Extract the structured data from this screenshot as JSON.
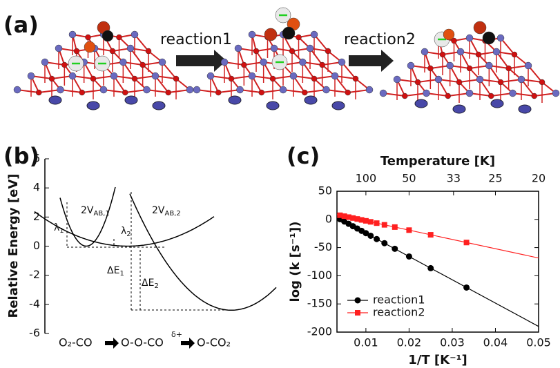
{
  "panel_labels": [
    "(a)",
    "(b)",
    "(c)"
  ],
  "reactions": [
    "reaction1",
    "reaction2"
  ],
  "chart_data": [
    {
      "type": "energy",
      "ylabel": "Relative Energy [eV]",
      "ylim": [
        -6,
        6
      ],
      "yticks": [
        -6,
        -4,
        -2,
        0,
        2,
        4,
        6
      ],
      "minima": [
        0,
        0,
        -4.4
      ],
      "annotations": [
        {
          "text": "λ",
          "sub": "1"
        },
        {
          "text": "2V",
          "sub": "AB,1"
        },
        {
          "text": "λ",
          "sub": "2"
        },
        {
          "text": "2V",
          "sub": "AB,2"
        },
        {
          "text": "ΔE",
          "sub": "1"
        },
        {
          "text": "ΔE",
          "sub": "2"
        }
      ],
      "scheme": [
        "O₂-CO",
        "O-O-CO",
        "δ+",
        "O-CO₂"
      ]
    },
    {
      "type": "line",
      "x2label": "Temperature [K]",
      "xlabel": "1/T [K⁻¹]",
      "ylabel": "log (k [s⁻¹])",
      "xlim": [
        0.0033,
        0.05
      ],
      "xticks": [
        0.01,
        0.02,
        0.03,
        0.04,
        0.05
      ],
      "x2ticks": [
        {
          "value": 0.01,
          "label": "100"
        },
        {
          "value": 0.02,
          "label": "50"
        },
        {
          "value": 0.0303,
          "label": "33"
        },
        {
          "value": 0.04,
          "label": "25"
        },
        {
          "value": 0.05,
          "label": "20"
        }
      ],
      "ylim": [
        -200,
        50
      ],
      "yticks": [
        -200,
        -150,
        -100,
        -50,
        0,
        50
      ],
      "series": [
        {
          "name": "reaction1",
          "color": "#000000",
          "marker": "circle",
          "x": [
            0.004,
            0.005,
            0.006,
            0.007,
            0.008,
            0.009,
            0.01,
            0.0111,
            0.0125,
            0.0143,
            0.0167,
            0.02,
            0.025,
            0.0333
          ],
          "values": [
            0.4,
            -3.7,
            -7.8,
            -12,
            -16.1,
            -20.3,
            -24.4,
            -29,
            -34.8,
            -42.2,
            -52.1,
            -65.8,
            -86.5,
            -120.9
          ],
          "fit": {
            "x": [
              0.0033,
              0.05
            ],
            "values": [
              3.3,
              -190
            ]
          }
        },
        {
          "name": "reaction2",
          "color": "#ff2020",
          "marker": "square",
          "x": [
            0.004,
            0.005,
            0.006,
            0.007,
            0.008,
            0.009,
            0.01,
            0.0111,
            0.0125,
            0.0143,
            0.0167,
            0.02,
            0.025,
            0.0333
          ],
          "values": [
            7.4,
            5.75,
            4.1,
            2.45,
            0.8,
            -0.85,
            -2.5,
            -4.3,
            -6.6,
            -9.6,
            -13.6,
            -19,
            -27.3,
            -41
          ],
          "fit": {
            "x": [
              0.0033,
              0.05
            ],
            "values": [
              8.6,
              -68.5
            ]
          }
        }
      ]
    }
  ]
}
